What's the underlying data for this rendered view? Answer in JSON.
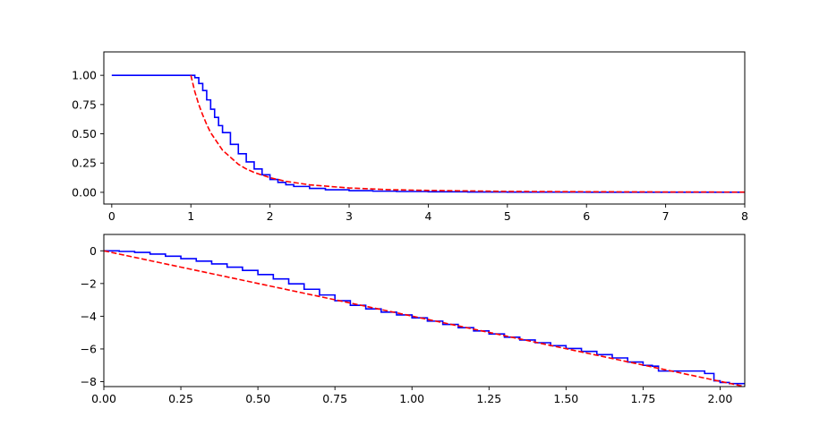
{
  "chart_data": [
    {
      "type": "line",
      "title": "",
      "xlabel": "",
      "ylabel": "",
      "xlim": [
        -0.1,
        8.0
      ],
      "ylim": [
        -0.1,
        1.2
      ],
      "grid": false,
      "xticks": [
        0,
        1,
        2,
        3,
        4,
        5,
        6,
        7,
        8
      ],
      "xtick_labels": [
        "0",
        "1",
        "2",
        "3",
        "4",
        "5",
        "6",
        "7",
        "8"
      ],
      "yticks": [
        0.0,
        0.25,
        0.5,
        0.75,
        1.0
      ],
      "ytick_labels": [
        "0.00",
        "0.25",
        "0.50",
        "0.75",
        "1.00"
      ],
      "series": [
        {
          "color": "#0000ff",
          "style": "solid",
          "step": true,
          "x": [
            0,
            1.0,
            1.05,
            1.1,
            1.15,
            1.2,
            1.25,
            1.3,
            1.35,
            1.4,
            1.5,
            1.6,
            1.7,
            1.8,
            1.9,
            2.0,
            2.1,
            2.2,
            2.3,
            2.5,
            2.7,
            3.0,
            3.3,
            3.6,
            4.0,
            4.5,
            5.0,
            6.0,
            7.0,
            8.0
          ],
          "y": [
            1.0,
            1.0,
            0.98,
            0.93,
            0.87,
            0.79,
            0.71,
            0.64,
            0.57,
            0.51,
            0.41,
            0.33,
            0.26,
            0.2,
            0.15,
            0.11,
            0.085,
            0.065,
            0.05,
            0.033,
            0.022,
            0.014,
            0.01,
            0.007,
            0.005,
            0.003,
            0.002,
            0.001,
            0.0005,
            0.0
          ]
        },
        {
          "color": "#ff0000",
          "style": "dashed",
          "x": [
            1.0,
            1.05,
            1.1,
            1.15,
            1.2,
            1.25,
            1.3,
            1.4,
            1.5,
            1.6,
            1.7,
            1.8,
            2.0,
            2.2,
            2.5,
            3.0,
            3.5,
            4.0,
            5.0,
            6.0,
            7.0,
            8.0
          ],
          "y": [
            1.0,
            0.86,
            0.75,
            0.66,
            0.58,
            0.51,
            0.46,
            0.36,
            0.3,
            0.24,
            0.2,
            0.17,
            0.125,
            0.094,
            0.064,
            0.037,
            0.023,
            0.016,
            0.008,
            0.005,
            0.003,
            0.002
          ]
        }
      ]
    },
    {
      "type": "line",
      "title": "",
      "xlabel": "",
      "ylabel": "",
      "xlim": [
        0.0,
        2.08
      ],
      "ylim": [
        -8.3,
        1.0
      ],
      "grid": false,
      "xticks": [
        0.0,
        0.25,
        0.5,
        0.75,
        1.0,
        1.25,
        1.5,
        1.75,
        2.0
      ],
      "xtick_labels": [
        "0.00",
        "0.25",
        "0.50",
        "0.75",
        "1.00",
        "1.25",
        "1.50",
        "1.75",
        "2.00"
      ],
      "yticks": [
        0,
        -2,
        -4,
        -6,
        -8
      ],
      "ytick_labels": [
        "0",
        "−2",
        "−4",
        "−6",
        "−8"
      ],
      "series": [
        {
          "color": "#0000ff",
          "style": "solid",
          "step": true,
          "x": [
            0.0,
            0.05,
            0.1,
            0.15,
            0.2,
            0.25,
            0.3,
            0.35,
            0.4,
            0.45,
            0.5,
            0.55,
            0.6,
            0.65,
            0.7,
            0.75,
            0.8,
            0.85,
            0.9,
            0.95,
            1.0,
            1.05,
            1.1,
            1.15,
            1.2,
            1.25,
            1.3,
            1.35,
            1.4,
            1.45,
            1.5,
            1.55,
            1.6,
            1.65,
            1.7,
            1.75,
            1.78,
            1.8,
            1.85,
            1.9,
            1.95,
            1.98,
            2.0,
            2.03,
            2.08
          ],
          "y": [
            0.0,
            -0.04,
            -0.1,
            -0.2,
            -0.33,
            -0.48,
            -0.63,
            -0.8,
            -1.0,
            -1.2,
            -1.45,
            -1.72,
            -2.02,
            -2.35,
            -2.7,
            -3.05,
            -3.33,
            -3.55,
            -3.75,
            -3.92,
            -4.1,
            -4.3,
            -4.5,
            -4.7,
            -4.9,
            -5.08,
            -5.28,
            -5.45,
            -5.62,
            -5.8,
            -5.97,
            -6.15,
            -6.35,
            -6.55,
            -6.8,
            -7.0,
            -7.05,
            -7.35,
            -7.35,
            -7.35,
            -7.5,
            -7.95,
            -8.05,
            -8.12,
            -8.12
          ]
        },
        {
          "color": "#ff0000",
          "style": "dashed",
          "x": [
            0.0,
            2.08
          ],
          "y": [
            0.0,
            -8.3
          ]
        }
      ]
    }
  ]
}
